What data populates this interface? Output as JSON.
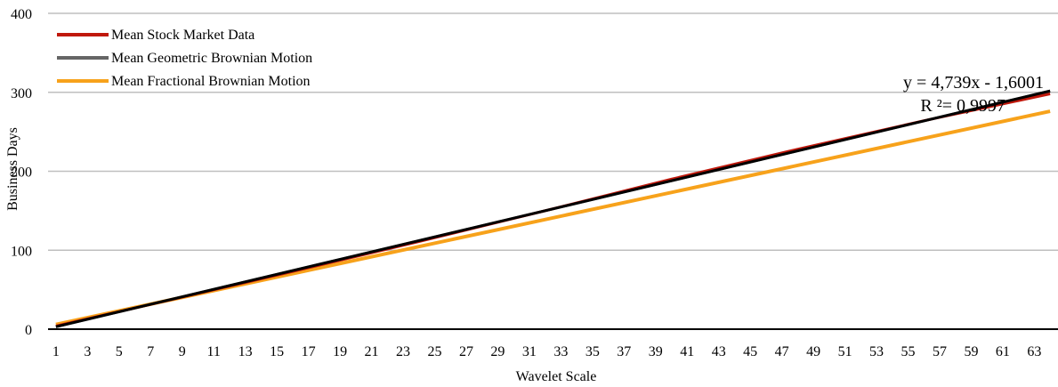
{
  "chart_data": {
    "type": "line",
    "xlabel": "Wavelet Scale",
    "ylabel": "Business Days",
    "xlim": [
      1,
      64
    ],
    "ylim": [
      0,
      400
    ],
    "y_ticks": [
      0,
      100,
      200,
      300,
      400
    ],
    "x_tick_labels": [
      "1",
      "3",
      "5",
      "7",
      "9",
      "11",
      "13",
      "15",
      "17",
      "19",
      "21",
      "23",
      "25",
      "27",
      "29",
      "31",
      "33",
      "35",
      "37",
      "39",
      "41",
      "43",
      "45",
      "47",
      "49",
      "51",
      "53",
      "55",
      "57",
      "59",
      "61",
      "63"
    ],
    "grid": "horizontal",
    "legend_position": "top-left",
    "series": [
      {
        "name": "Mean Stock Market Data",
        "color": "#c0180c",
        "width": 3,
        "points": [
          [
            1,
            4
          ],
          [
            8,
            36
          ],
          [
            16,
            73
          ],
          [
            24,
            111
          ],
          [
            32,
            150
          ],
          [
            40,
            190
          ],
          [
            48,
            228
          ],
          [
            56,
            264
          ],
          [
            64,
            298
          ]
        ]
      },
      {
        "name": "Mean Geometric Brownian Motion",
        "color": "#666666",
        "width": 3,
        "points": [
          [
            1,
            3.1
          ],
          [
            64,
            301.7
          ]
        ]
      },
      {
        "name": "Mean Fractional Brownian Motion",
        "color": "#f7a21b",
        "width": 4,
        "points": [
          [
            1,
            6
          ],
          [
            64,
            276
          ]
        ]
      }
    ],
    "trendline": {
      "color": "#000000",
      "width": 3,
      "points": [
        [
          1,
          3.1
        ],
        [
          64,
          301.7
        ]
      ]
    },
    "annotations": [
      "y = 4,739x - 1,6001",
      "R ²= 0,9997"
    ]
  }
}
